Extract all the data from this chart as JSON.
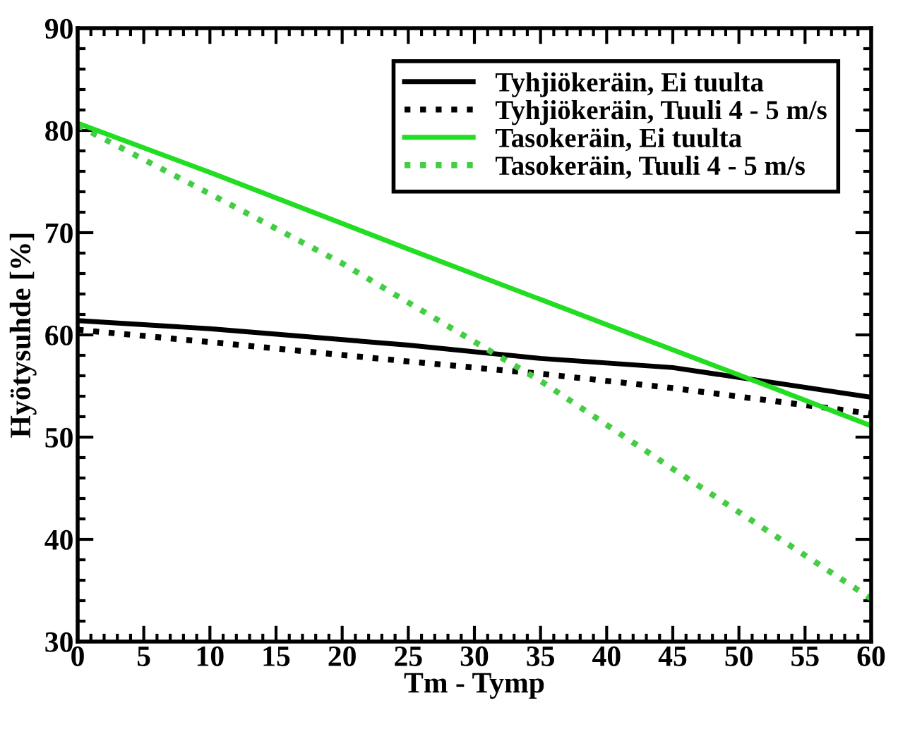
{
  "chart_data": {
    "type": "line",
    "xlabel": "Tm - Tymp",
    "ylabel": "Hyötysuhde [%]",
    "xlim": [
      0,
      60
    ],
    "ylim": [
      30,
      90
    ],
    "xticks": [
      0,
      5,
      10,
      15,
      20,
      25,
      30,
      35,
      40,
      45,
      50,
      55,
      60
    ],
    "yticks": [
      30,
      40,
      50,
      60,
      70,
      80,
      90
    ],
    "grid": false,
    "legend": "top right",
    "series": [
      {
        "name": "Tyhjiökeräin, Ei tuulta",
        "color": "#000000",
        "line_style": "solid",
        "x": [
          0,
          10,
          25,
          35,
          45,
          60
        ],
        "values": [
          61.4,
          60.6,
          59.0,
          57.7,
          56.8,
          53.9
        ]
      },
      {
        "name": "Tyhjiökeräin, Tuuli 4 - 5 m/s",
        "color": "#000000",
        "line_style": "dotted",
        "x": [
          0,
          10,
          25,
          35,
          45,
          60
        ],
        "values": [
          60.5,
          59.3,
          57.4,
          56.2,
          54.8,
          52.3
        ]
      },
      {
        "name": "Tasokeräin, Ei tuulta",
        "color": "#22dd22",
        "line_style": "solid",
        "x": [
          0,
          10,
          25,
          40,
          52,
          60
        ],
        "values": [
          80.7,
          75.9,
          68.4,
          61.0,
          55.1,
          51.1
        ]
      },
      {
        "name": "Tasokeräin, Tuuli 4 - 5 m/s",
        "color": "#44cc44",
        "line_style": "dotted",
        "x": [
          0,
          10,
          20,
          35,
          45,
          60
        ],
        "values": [
          80.5,
          73.8,
          67.0,
          55.5,
          46.9,
          34.2
        ]
      }
    ]
  }
}
